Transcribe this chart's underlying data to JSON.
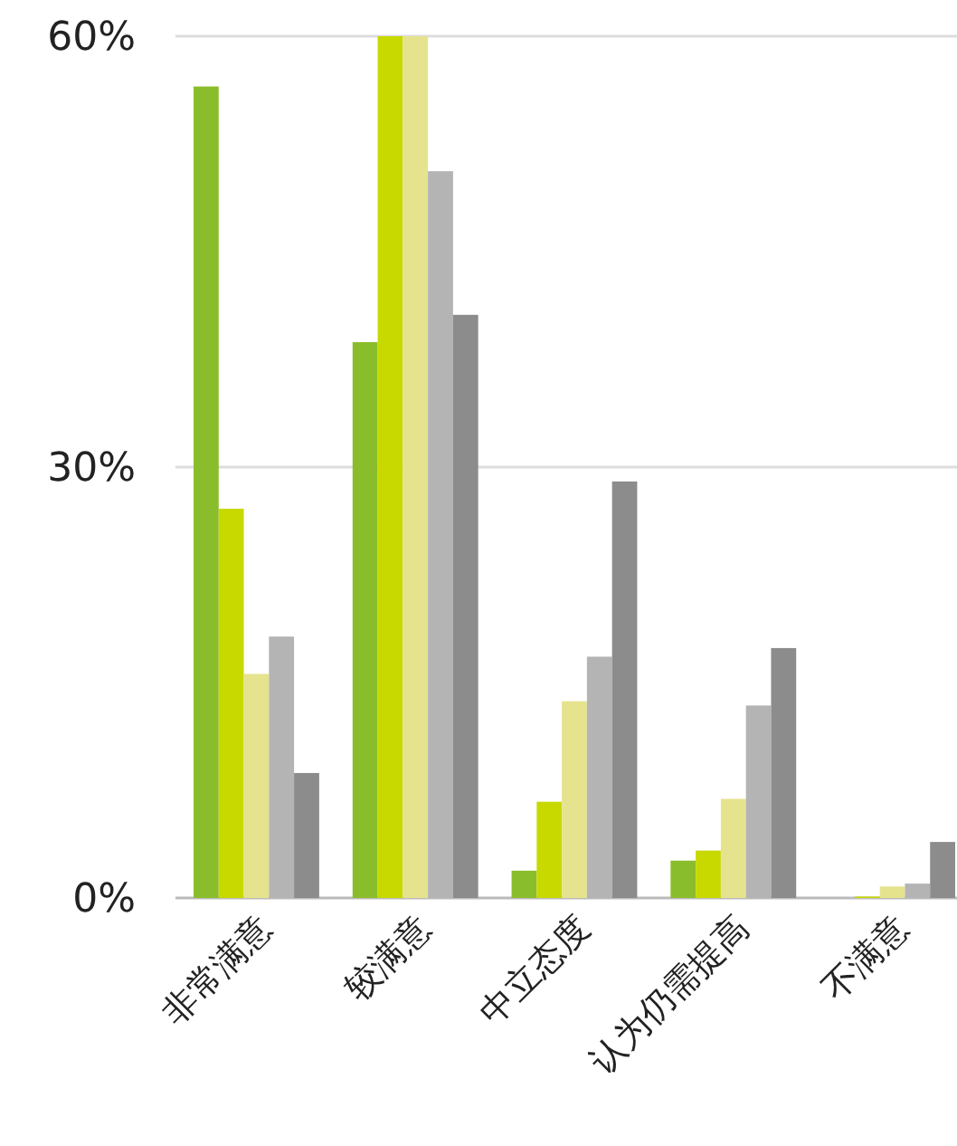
{
  "chart_data": {
    "type": "bar",
    "categories": [
      "非常满意",
      "较满意",
      "中立态度",
      "认为仍需提高",
      "不满意"
    ],
    "series": [
      {
        "color": "#8abd2b",
        "values": [
          56.5,
          38.7,
          1.9,
          2.6,
          0
        ]
      },
      {
        "color": "#c8d900",
        "values": [
          27.1,
          60,
          6.7,
          3.3,
          0.1
        ]
      },
      {
        "color": "#e6e38f",
        "values": [
          15.6,
          60,
          13.7,
          6.9,
          0.8
        ]
      },
      {
        "color": "#b4b4b4",
        "values": [
          18.2,
          50.6,
          16.8,
          13.4,
          1.0
        ]
      },
      {
        "color": "#8c8c8c",
        "values": [
          8.7,
          40.6,
          29.0,
          17.4,
          3.9
        ]
      }
    ],
    "ylim": [
      0,
      60
    ],
    "yticks": [
      {
        "value": 0,
        "label": "0%"
      },
      {
        "value": 30,
        "label": "30%"
      },
      {
        "value": 60,
        "label": "60%"
      }
    ],
    "grid": "y"
  }
}
